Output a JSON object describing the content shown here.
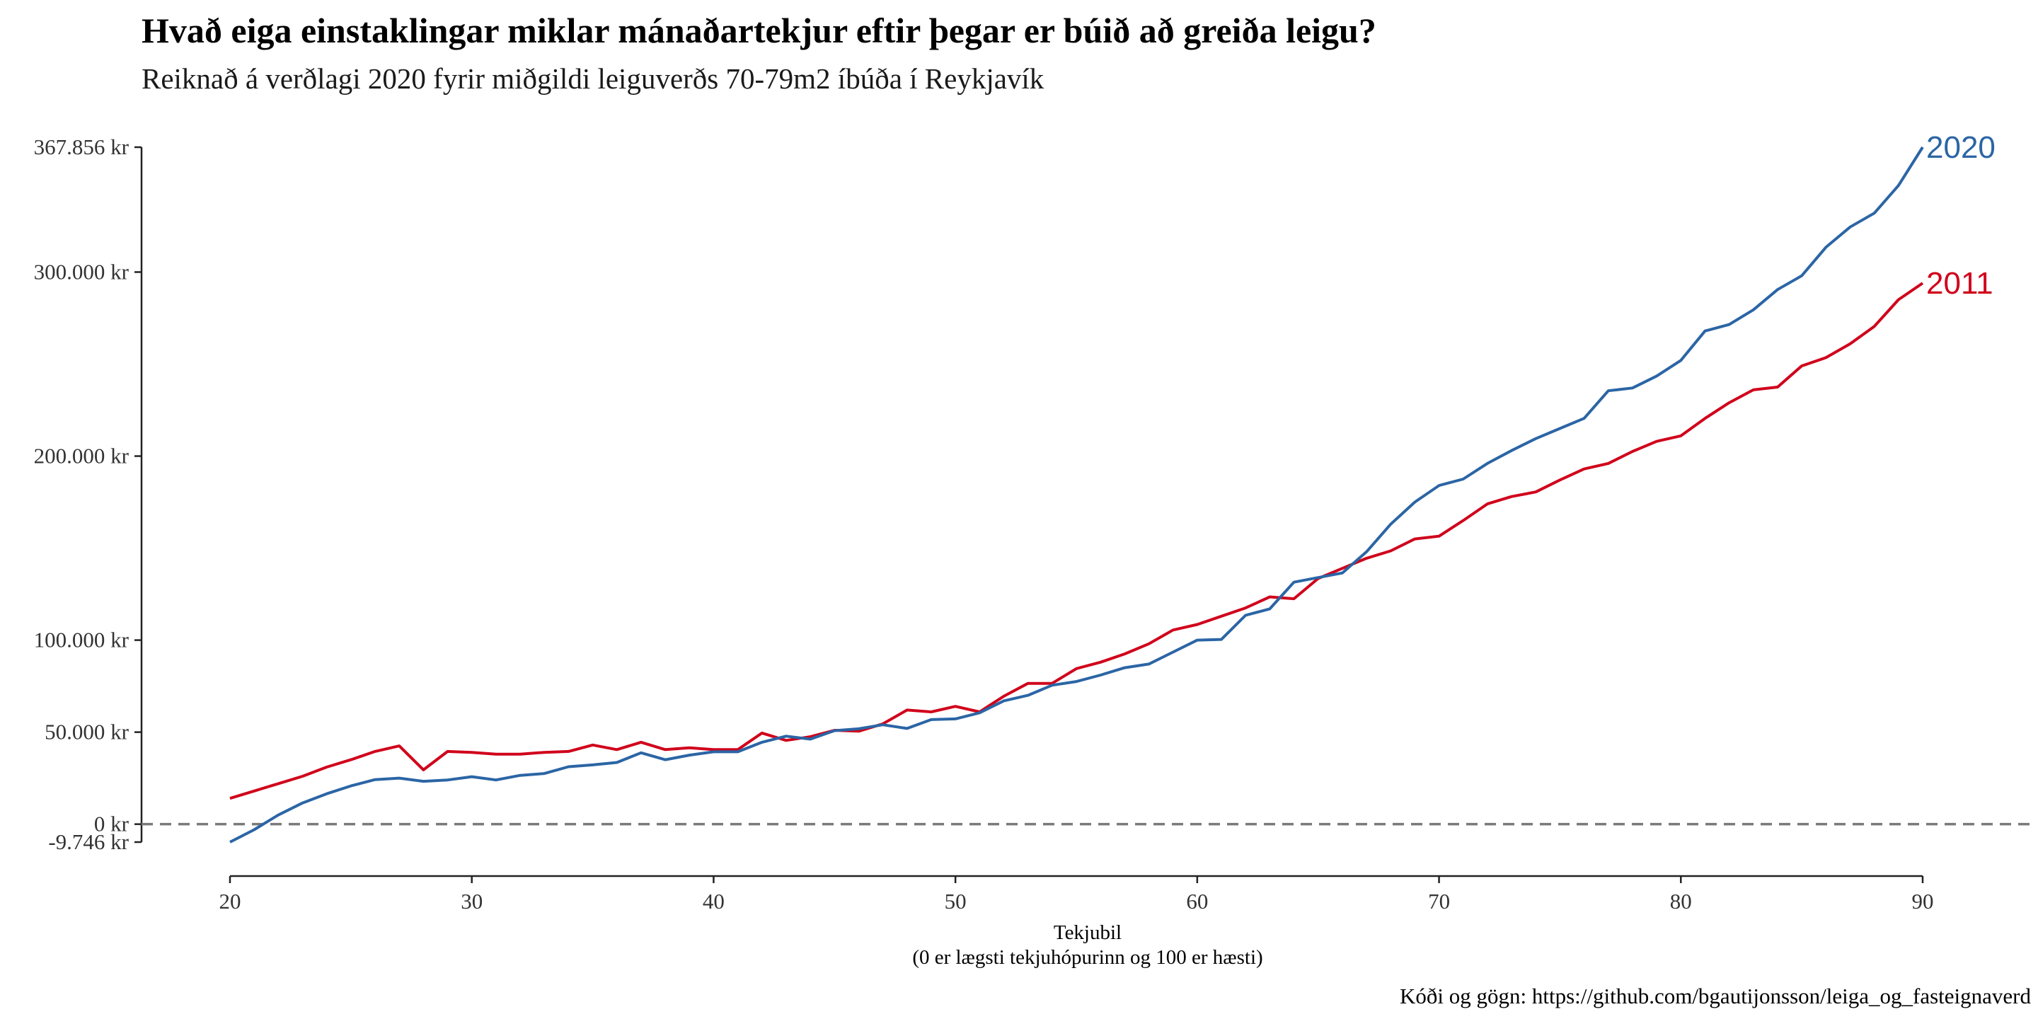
{
  "chart_data": {
    "type": "line",
    "title": "Hvað eiga einstaklingar miklar mánaðartekjur eftir þegar er búið að greiða leigu?",
    "subtitle": "Reiknað á verðlagi 2020 fyrir miðgildi leiguverðs 70-79m2 íbúða í Reykjavík",
    "xlabel": "Tekjubil",
    "xlabel_sub": "(0 er lægsti tekjuhópurinn og 100 er hæsti)",
    "caption": "Kóði og gögn: https://github.com/bgautijonsson/leiga_og_fasteignaverd",
    "xlim": [
      20,
      90
    ],
    "ylim": [
      -9746,
      367856
    ],
    "x_ticks": [
      20,
      30,
      40,
      50,
      60,
      70,
      80,
      90
    ],
    "x_tick_labels": [
      "20",
      "30",
      "40",
      "50",
      "60",
      "70",
      "80",
      "90"
    ],
    "y_ticks": [
      -9746,
      0,
      50000,
      100000,
      200000,
      300000,
      367856
    ],
    "y_tick_labels": [
      "-9.746 kr",
      "0 kr",
      "50.000 kr",
      "100.000 kr",
      "200.000 kr",
      "300.000 kr",
      "367.856 kr"
    ],
    "reference_line": {
      "y": 0,
      "style": "dashed",
      "color": "#7a7a7a"
    },
    "x": [
      20,
      21,
      22,
      23,
      24,
      25,
      26,
      27,
      28,
      29,
      30,
      31,
      32,
      33,
      34,
      35,
      36,
      37,
      38,
      39,
      40,
      41,
      42,
      43,
      44,
      45,
      46,
      47,
      48,
      49,
      50,
      51,
      52,
      53,
      54,
      55,
      56,
      57,
      58,
      59,
      60,
      61,
      62,
      63,
      64,
      65,
      66,
      67,
      68,
      69,
      70,
      71,
      72,
      73,
      74,
      75,
      76,
      77,
      78,
      79,
      80,
      81,
      82,
      83,
      84,
      85,
      86,
      87,
      88,
      89,
      90
    ],
    "series": [
      {
        "name": "2020",
        "color": "#2b65a5",
        "values": [
          -9746,
          -3000,
          5000,
          11500,
          16500,
          20800,
          24200,
          25000,
          23300,
          24000,
          25800,
          24000,
          26500,
          27500,
          31200,
          32200,
          33500,
          38800,
          35000,
          37500,
          39300,
          39300,
          44500,
          47800,
          46200,
          50800,
          51800,
          54000,
          52000,
          56800,
          57200,
          60500,
          67000,
          70000,
          75500,
          77500,
          81000,
          85000,
          87000,
          93500,
          100000,
          100400,
          113500,
          117000,
          131500,
          134000,
          136500,
          148000,
          163000,
          175000,
          184000,
          187500,
          196000,
          203000,
          209500,
          215000,
          220500,
          235500,
          237000,
          243500,
          252000,
          268000,
          271500,
          279500,
          290500,
          298000,
          313500,
          324500,
          332000,
          347000,
          367856
        ]
      },
      {
        "name": "2011",
        "color": "#d0021b",
        "values": [
          14000,
          18000,
          22000,
          26000,
          31000,
          35000,
          39500,
          42500,
          29500,
          39500,
          39000,
          38000,
          38000,
          39000,
          39500,
          43000,
          40500,
          44500,
          40500,
          41500,
          40500,
          40500,
          49500,
          45500,
          47500,
          51000,
          50500,
          54500,
          62000,
          61000,
          64000,
          61000,
          69500,
          76500,
          76500,
          84500,
          88000,
          92500,
          98000,
          105500,
          108500,
          113000,
          117500,
          123500,
          122500,
          133500,
          139000,
          144500,
          148500,
          155000,
          156500,
          165000,
          174000,
          178000,
          180500,
          187000,
          193000,
          196000,
          202500,
          208000,
          211000,
          220500,
          229000,
          236000,
          237500,
          249000,
          253500,
          261000,
          270500,
          285000,
          294000
        ]
      }
    ]
  }
}
